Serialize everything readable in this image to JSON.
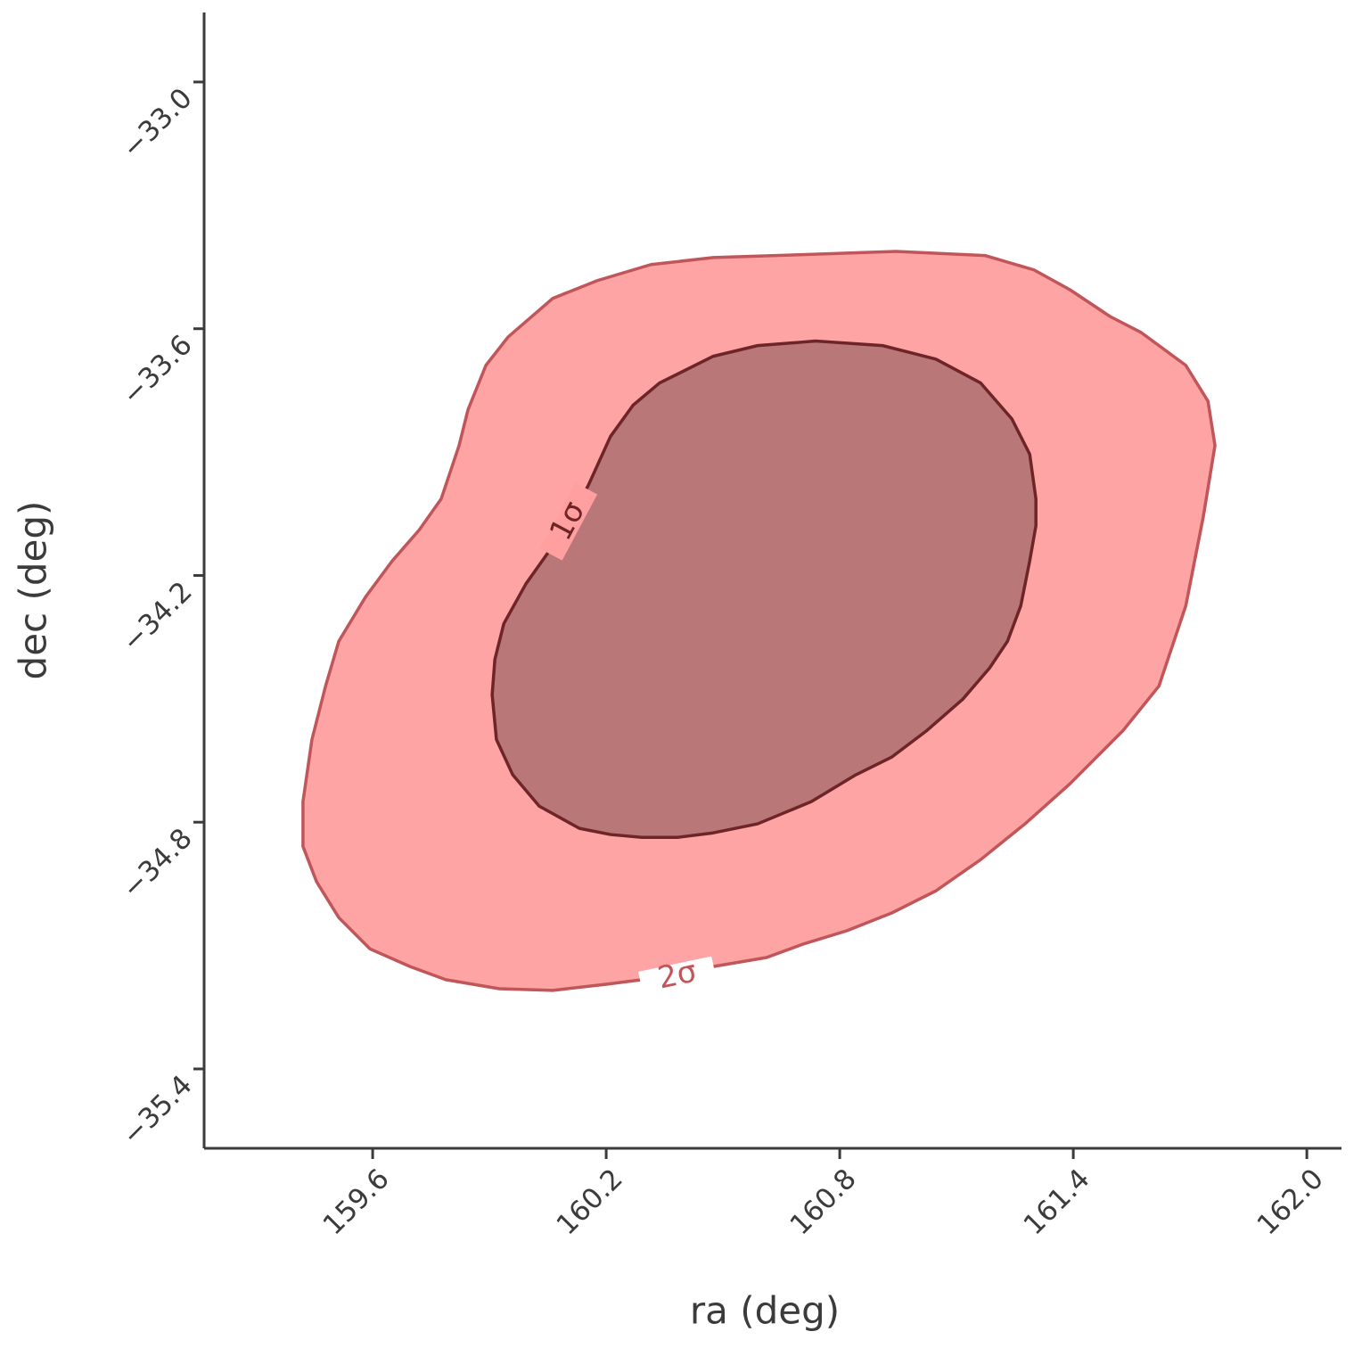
{
  "chart_data": {
    "type": "contour",
    "xlabel": "ra (deg)",
    "ylabel": "dec (deg)",
    "xlim": [
      159.167,
      162.089
    ],
    "ylim": [
      -35.593,
      -32.831
    ],
    "xticks": [
      159.6,
      160.2,
      160.8,
      161.4,
      {
        "value": 162.0,
        "label": "162.0"
      }
    ],
    "yticks": [
      {
        "value": -33.0,
        "label": "−33.0"
      },
      {
        "value": -33.6,
        "label": "−33.6"
      },
      {
        "value": -34.2,
        "label": "−34.2"
      },
      {
        "value": -34.8,
        "label": "−34.8"
      },
      {
        "value": -35.4,
        "label": "−35.4"
      }
    ],
    "series": [
      {
        "name": "2σ",
        "color": "#ff9f9f",
        "edge_color": "#c0555a",
        "x": [
          160.944,
          161.173,
          161.299,
          161.391,
          161.494,
          161.574,
          161.689,
          161.746,
          161.764,
          161.734,
          161.689,
          161.62,
          161.528,
          161.391,
          161.276,
          161.162,
          161.047,
          160.933,
          160.818,
          160.704,
          160.612,
          160.475,
          160.292,
          160.2,
          160.063,
          159.925,
          159.788,
          159.696,
          159.593,
          159.513,
          159.456,
          159.421,
          159.421,
          159.444,
          159.479,
          159.513,
          159.582,
          159.65,
          159.719,
          159.776,
          159.822,
          159.845,
          159.891,
          159.948,
          160.063,
          160.177,
          160.315,
          160.475,
          160.704
        ],
        "y": [
          -33.412,
          -33.422,
          -33.457,
          -33.505,
          -33.57,
          -33.609,
          -33.689,
          -33.776,
          -33.884,
          -34.057,
          -34.274,
          -34.469,
          -34.577,
          -34.707,
          -34.804,
          -34.891,
          -34.967,
          -35.021,
          -35.064,
          -35.097,
          -35.129,
          -35.151,
          -35.183,
          -35.194,
          -35.209,
          -35.205,
          -35.183,
          -35.151,
          -35.108,
          -35.032,
          -34.945,
          -34.859,
          -34.75,
          -34.599,
          -34.469,
          -34.36,
          -34.252,
          -34.165,
          -34.09,
          -34.014,
          -33.884,
          -33.797,
          -33.689,
          -33.62,
          -33.526,
          -33.483,
          -33.444,
          -33.427,
          -33.42
        ]
      },
      {
        "name": "1σ",
        "color": "#b57575",
        "edge_color": "#6e2528",
        "x": [
          160.738,
          160.91,
          161.047,
          161.162,
          161.242,
          161.288,
          161.304,
          161.304,
          161.288,
          161.265,
          161.231,
          161.185,
          161.116,
          161.024,
          160.933,
          160.841,
          160.727,
          160.589,
          160.475,
          160.383,
          160.292,
          160.211,
          160.131,
          160.028,
          159.96,
          159.918,
          159.907,
          159.914,
          159.937,
          159.994,
          160.051,
          160.097,
          160.154,
          160.211,
          160.269,
          160.337,
          160.475,
          160.589
        ],
        "y": [
          -33.63,
          -33.641,
          -33.674,
          -33.732,
          -33.819,
          -33.905,
          -34.014,
          -34.079,
          -34.165,
          -34.274,
          -34.36,
          -34.425,
          -34.501,
          -34.577,
          -34.642,
          -34.685,
          -34.75,
          -34.804,
          -34.826,
          -34.837,
          -34.837,
          -34.83,
          -34.815,
          -34.761,
          -34.685,
          -34.599,
          -34.49,
          -34.404,
          -34.317,
          -34.22,
          -34.144,
          -34.079,
          -33.981,
          -33.862,
          -33.786,
          -33.732,
          -33.667,
          -33.641
        ]
      }
    ]
  }
}
